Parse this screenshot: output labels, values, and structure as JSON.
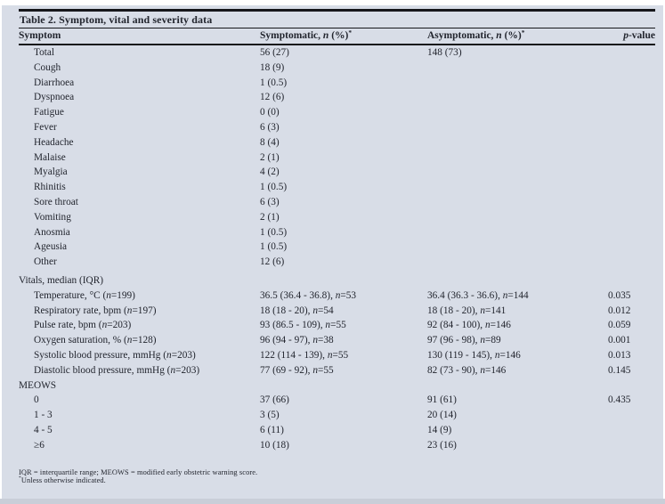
{
  "page": {
    "background": "#ffffff",
    "card_background": "#d8dde7",
    "text_color": "#22252e",
    "rule_color": "#16171b"
  },
  "table": {
    "title": "Table 2. Symptom, vital and severity data",
    "columns": [
      "Symptom",
      "Symptomatic, n (%)*",
      "Asymptomatic, n (%)*",
      "p-value"
    ],
    "sections": [
      {
        "header": null,
        "rows": [
          {
            "label": "Total",
            "symptomatic": "56 (27)",
            "asymptomatic": "148 (73)",
            "p": ""
          },
          {
            "label": "Cough",
            "symptomatic": "18 (9)",
            "asymptomatic": "",
            "p": ""
          },
          {
            "label": "Diarrhoea",
            "symptomatic": "1 (0.5)",
            "asymptomatic": "",
            "p": ""
          },
          {
            "label": "Dyspnoea",
            "symptomatic": "12 (6)",
            "asymptomatic": "",
            "p": ""
          },
          {
            "label": "Fatigue",
            "symptomatic": "0 (0)",
            "asymptomatic": "",
            "p": ""
          },
          {
            "label": "Fever",
            "symptomatic": "6 (3)",
            "asymptomatic": "",
            "p": ""
          },
          {
            "label": "Headache",
            "symptomatic": "8 (4)",
            "asymptomatic": "",
            "p": ""
          },
          {
            "label": "Malaise",
            "symptomatic": "2 (1)",
            "asymptomatic": "",
            "p": ""
          },
          {
            "label": "Myalgia",
            "symptomatic": "4 (2)",
            "asymptomatic": "",
            "p": ""
          },
          {
            "label": "Rhinitis",
            "symptomatic": "1 (0.5)",
            "asymptomatic": "",
            "p": ""
          },
          {
            "label": "Sore throat",
            "symptomatic": "6 (3)",
            "asymptomatic": "",
            "p": ""
          },
          {
            "label": "Vomiting",
            "symptomatic": "2 (1)",
            "asymptomatic": "",
            "p": ""
          },
          {
            "label": "Anosmia",
            "symptomatic": "1 (0.5)",
            "asymptomatic": "",
            "p": ""
          },
          {
            "label": "Ageusia",
            "symptomatic": "1 (0.5)",
            "asymptomatic": "",
            "p": ""
          },
          {
            "label": "Other",
            "symptomatic": "12 (6)",
            "asymptomatic": "",
            "p": ""
          }
        ]
      },
      {
        "header": "Vitals, median (IQR)",
        "rows": [
          {
            "label": "Temperature, °C (n=199)",
            "symptomatic": "36.5 (36.4 - 36.8), n=53",
            "asymptomatic": "36.4 (36.3 - 36.6), n=144",
            "p": "0.035"
          },
          {
            "label": "Respiratory rate, bpm (n=197)",
            "symptomatic": "18 (18 - 20), n=54",
            "asymptomatic": "18 (18 - 20), n=141",
            "p": "0.012"
          },
          {
            "label": "Pulse rate, bpm (n=203)",
            "symptomatic": "93 (86.5 - 109), n=55",
            "asymptomatic": "92 (84 - 100), n=146",
            "p": "0.059"
          },
          {
            "label": "Oxygen saturation, % (n=128)",
            "symptomatic": "96 (94 - 97), n=38",
            "asymptomatic": "97 (96 - 98), n=89",
            "p": "0.001"
          },
          {
            "label": "Systolic blood pressure, mmHg (n=203)",
            "symptomatic": "122 (114 - 139), n=55",
            "asymptomatic": "130 (119 - 145), n=146",
            "p": "0.013"
          },
          {
            "label": "Diastolic blood pressure, mmHg (n=203)",
            "symptomatic": "77 (69 - 92), n=55",
            "asymptomatic": "82 (73 - 90), n=146",
            "p": "0.145"
          }
        ]
      },
      {
        "header": "MEOWS",
        "rows": [
          {
            "label": "0",
            "symptomatic": "37 (66)",
            "asymptomatic": "91 (61)",
            "p": "0.435"
          },
          {
            "label": "1 - 3",
            "symptomatic": "3 (5)",
            "asymptomatic": "20 (14)",
            "p": ""
          },
          {
            "label": "4 - 5",
            "symptomatic": "6 (11)",
            "asymptomatic": "14 (9)",
            "p": ""
          },
          {
            "label": "≥6",
            "symptomatic": "10 (18)",
            "asymptomatic": "23 (16)",
            "p": ""
          }
        ]
      }
    ],
    "footnotes": [
      "IQR = interquartile range; MEOWS = modified early obstetric warning score.",
      "*Unless otherwise indicated."
    ]
  }
}
